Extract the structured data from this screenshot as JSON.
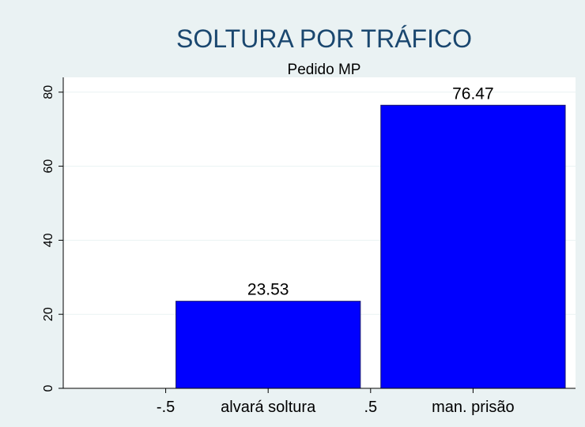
{
  "chart_data": {
    "type": "bar",
    "title": "SOLTURA POR TRÁFICO",
    "subtitle": "Pedido MP",
    "x": [
      0,
      1
    ],
    "values": [
      23.53,
      76.47
    ],
    "color": "#0000ff",
    "xlim": [
      -1,
      1.5
    ],
    "xticks": [
      {
        "value": -0.5,
        "label": "-.5"
      },
      {
        "value": 0,
        "label": "alvará soltura"
      },
      {
        "value": 0.5,
        "label": ".5"
      },
      {
        "value": 1,
        "label": "man. prisão"
      }
    ],
    "ylim": [
      0,
      84
    ],
    "yticks": [
      0,
      20,
      40,
      60,
      80
    ],
    "grid": true
  }
}
